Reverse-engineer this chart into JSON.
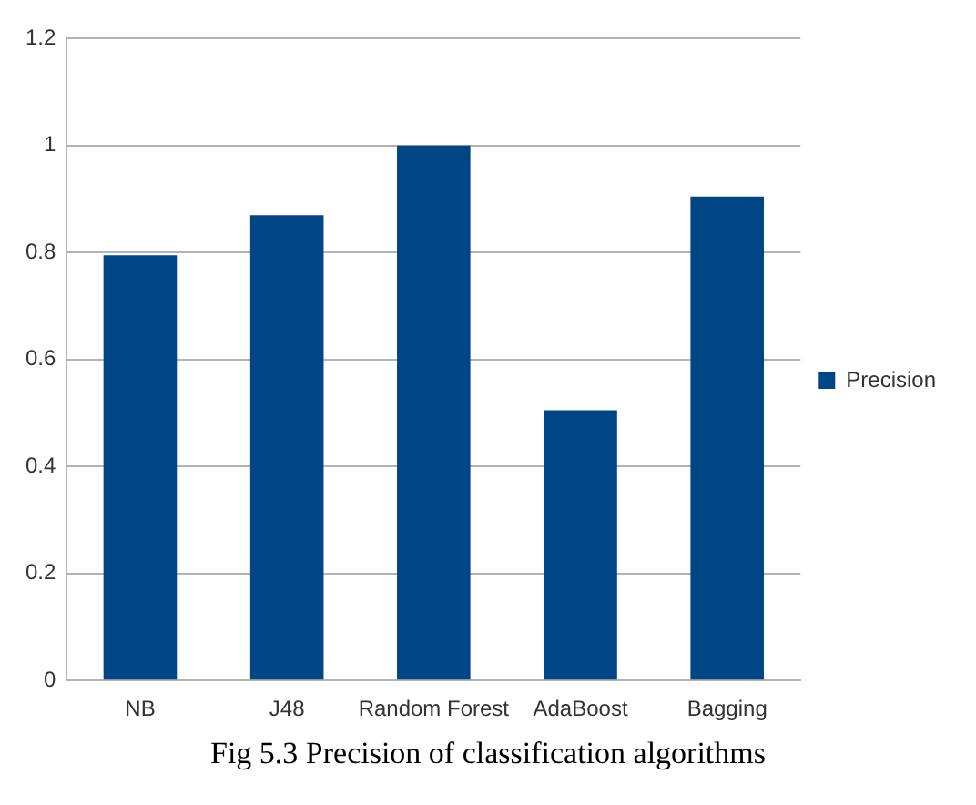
{
  "chart_data": {
    "type": "bar",
    "categories": [
      "NB",
      "J48",
      "Random Forest",
      "AdaBoost",
      "Bagging"
    ],
    "series": [
      {
        "name": "Precision",
        "color": "#004586",
        "values": [
          0.795,
          0.87,
          1.0,
          0.505,
          0.905
        ]
      }
    ],
    "ylim": [
      0,
      1.2
    ],
    "yticks": [
      0,
      0.2,
      0.4,
      0.6,
      0.8,
      1,
      1.2
    ],
    "grid": "y",
    "legend": "right",
    "annotations": [
      "Fig 5.3 Precision of classification algorithms"
    ]
  }
}
